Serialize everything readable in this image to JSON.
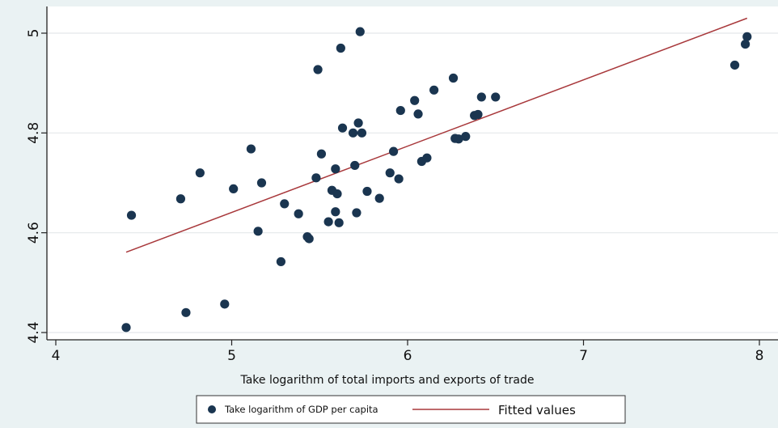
{
  "chart_data": {
    "type": "scatter",
    "title": "",
    "xlabel": "Take logarithm of total imports and exports of trade",
    "ylabel": "",
    "xlim": [
      4,
      8
    ],
    "ylim": [
      4.4,
      5.0
    ],
    "x_ticks": [
      "4",
      "5",
      "6",
      "7",
      "8"
    ],
    "y_ticks": [
      "4.4",
      "4.6",
      "4.8",
      "5"
    ],
    "grid": "horizontal",
    "legend_position": "bottom",
    "series": [
      {
        "name": "Take logarithm of GDP per capita",
        "kind": "scatter",
        "color": "#1a3550",
        "points": [
          [
            4.4,
            4.41
          ],
          [
            4.43,
            4.635
          ],
          [
            4.71,
            4.668
          ],
          [
            4.74,
            4.44
          ],
          [
            4.82,
            4.72
          ],
          [
            4.96,
            4.457
          ],
          [
            5.01,
            4.688
          ],
          [
            5.11,
            4.768
          ],
          [
            5.15,
            4.603
          ],
          [
            5.17,
            4.7
          ],
          [
            5.28,
            4.542
          ],
          [
            5.3,
            4.658
          ],
          [
            5.38,
            4.638
          ],
          [
            5.43,
            4.592
          ],
          [
            5.44,
            4.588
          ],
          [
            5.48,
            4.71
          ],
          [
            5.49,
            4.927
          ],
          [
            5.51,
            4.758
          ],
          [
            5.55,
            4.622
          ],
          [
            5.57,
            4.685
          ],
          [
            5.59,
            4.728
          ],
          [
            5.59,
            4.642
          ],
          [
            5.6,
            4.678
          ],
          [
            5.61,
            4.62
          ],
          [
            5.62,
            4.97
          ],
          [
            5.63,
            4.81
          ],
          [
            5.69,
            4.8
          ],
          [
            5.7,
            4.735
          ],
          [
            5.71,
            4.64
          ],
          [
            5.72,
            4.82
          ],
          [
            5.73,
            5.003
          ],
          [
            5.74,
            4.8
          ],
          [
            5.77,
            4.683
          ],
          [
            5.84,
            4.669
          ],
          [
            5.9,
            4.72
          ],
          [
            5.92,
            4.763
          ],
          [
            5.95,
            4.708
          ],
          [
            5.96,
            4.845
          ],
          [
            6.04,
            4.865
          ],
          [
            6.06,
            4.838
          ],
          [
            6.08,
            4.743
          ],
          [
            6.11,
            4.75
          ],
          [
            6.15,
            4.886
          ],
          [
            6.26,
            4.91
          ],
          [
            6.27,
            4.789
          ],
          [
            6.29,
            4.788
          ],
          [
            6.33,
            4.793
          ],
          [
            6.38,
            4.835
          ],
          [
            6.4,
            4.837
          ],
          [
            6.42,
            4.872
          ],
          [
            6.5,
            4.872
          ],
          [
            7.86,
            4.936
          ],
          [
            7.92,
            4.978
          ],
          [
            7.93,
            4.993
          ]
        ]
      },
      {
        "name": "Fitted values",
        "kind": "line",
        "color": "#a8383b",
        "points": [
          [
            4.4,
            4.561
          ],
          [
            7.93,
            5.03
          ]
        ]
      }
    ]
  }
}
